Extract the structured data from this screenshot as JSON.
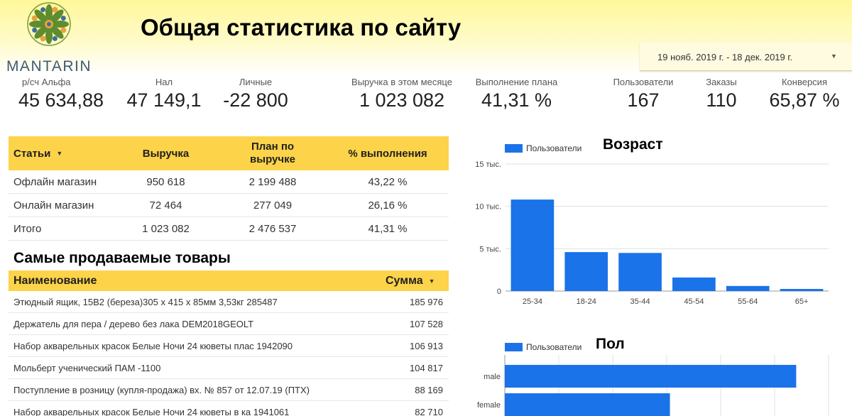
{
  "header": {
    "logo_text": "MANTARIN",
    "title": "Общая статистика по сайту",
    "date_range": "19 нояб. 2019 г. - 18 дек. 2019 г."
  },
  "kpis": [
    {
      "label": "р/сч Альфа",
      "value": "45 634,88"
    },
    {
      "label": "Нал",
      "value": "47 149,1"
    },
    {
      "label": "Личные",
      "value": "-22 800"
    },
    {
      "label": "Выручка в этом месяце",
      "value": "1 023 082"
    },
    {
      "label": "Выполнение плана",
      "value": "41,31 %"
    },
    {
      "label": "Пользователи",
      "value": "167"
    },
    {
      "label": "Заказы",
      "value": "110"
    },
    {
      "label": "Конверсия",
      "value": "65,87 %"
    }
  ],
  "revenue_table": {
    "headers": [
      "Статьи",
      "Выручка",
      "План по выручке",
      "% выполнения"
    ],
    "rows": [
      [
        "Офлайн магазин",
        "950 618",
        "2 199 488",
        "43,22 %"
      ],
      [
        "Онлайн магазин",
        "72 464",
        "277 049",
        "26,16 %"
      ],
      [
        "Итого",
        "1 023 082",
        "2 476 537",
        "41,31 %"
      ]
    ]
  },
  "top_products": {
    "title": "Самые продаваемые товары",
    "headers": [
      "Наименование",
      "Сумма"
    ],
    "rows": [
      [
        "Этюдный ящик, 15В2 (береза)305 х 415 х 85мм 3,53кг 285487",
        "185 976"
      ],
      [
        "Держатель для пера / дерево без лака DEM2018GEOLT",
        "107 528"
      ],
      [
        "Набор акварельных красок Белые Ночи 24 кюветы плас 1942090",
        "106 913"
      ],
      [
        "Мольберт ученический ПАМ -1100",
        "104 817"
      ],
      [
        "Поступление в розницу (купля-продажа) вх. № 857 от 12.07.19 (ПТХ)",
        "88 169"
      ],
      [
        "Набор акварельных красок Белые Ночи 24 кюветы в ка 1941061",
        "82 710"
      ]
    ]
  },
  "colors": {
    "accent": "#fdd34a",
    "bar": "#1a73e8",
    "logo": "#3d5a73"
  },
  "chart_data": [
    {
      "type": "bar",
      "title": "Возраст",
      "categories": [
        "25-34",
        "18-24",
        "35-44",
        "45-54",
        "55-64",
        "65+"
      ],
      "series": [
        {
          "name": "Пользователи",
          "values": [
            10800,
            4600,
            4500,
            1600,
            600,
            250
          ]
        }
      ],
      "ylim": [
        0,
        15000
      ],
      "yticks": [
        0,
        5000,
        10000,
        15000
      ],
      "ytick_labels": [
        "0",
        "5 тыс.",
        "10 тыс.",
        "15 тыс."
      ],
      "grid": true,
      "legend": "top-left"
    },
    {
      "type": "bar",
      "orientation": "horizontal",
      "title": "Пол",
      "categories": [
        "male",
        "female"
      ],
      "series": [
        {
          "name": "Пользователи",
          "values": [
            18000,
            10200
          ]
        }
      ],
      "grid": true,
      "legend": "top-left"
    }
  ]
}
